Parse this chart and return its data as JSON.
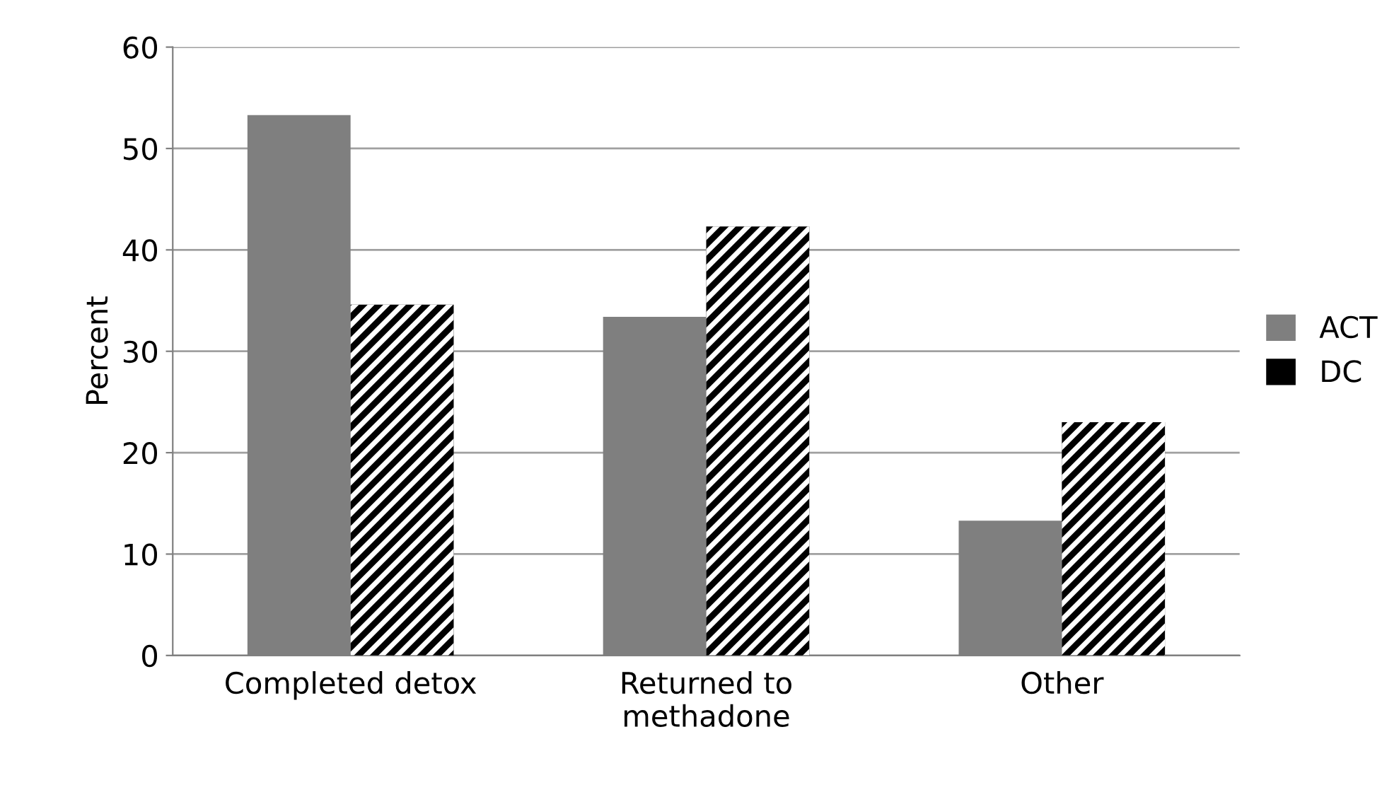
{
  "chart_data": {
    "type": "bar",
    "ylabel": "Percent",
    "categories": [
      "Completed detox",
      "Returned to\nmethadone",
      "Other"
    ],
    "series": [
      {
        "name": "ACT",
        "color": "#7f7f7f",
        "values": [
          53.3,
          33.4,
          13.3
        ]
      },
      {
        "name": "DC",
        "color": "#000000",
        "values": [
          34.6,
          42.3,
          23.0
        ]
      }
    ],
    "ylim": [
      0,
      60
    ],
    "yticks": [
      0,
      10,
      20,
      30,
      40,
      50,
      60
    ],
    "grid": "y",
    "legend": "right"
  }
}
